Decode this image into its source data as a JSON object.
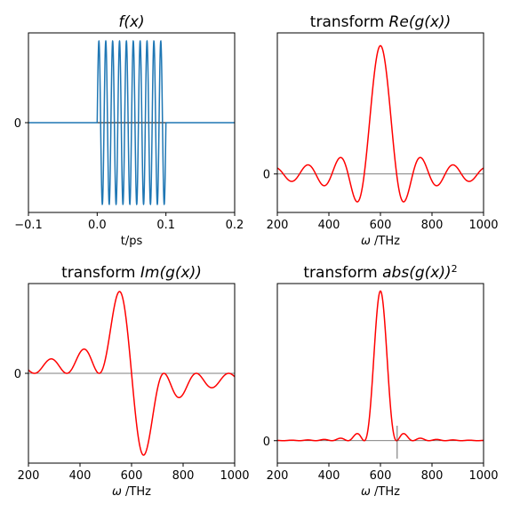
{
  "chart_data": [
    {
      "id": "f",
      "type": "line",
      "title_plain": "",
      "title_math": "f(x)",
      "xlabel_math": "",
      "xlabel_plain": "t/ps",
      "xlim": [
        -0.1,
        0.2
      ],
      "ylim": [
        -1.1,
        1.1
      ],
      "xticks": [
        -0.1,
        0.0,
        0.1,
        0.2
      ],
      "xtick_labels": [
        "−0.1",
        "0.0",
        "0.1",
        "0.2"
      ],
      "yticks": [
        0
      ],
      "ytick_labels": [
        "0"
      ],
      "series": [
        {
          "color": "#1f77b4",
          "kind": "sine-burst",
          "frequency_per_ps": 100,
          "t_start": 0.0,
          "t_end": 0.1,
          "amplitude": 1.0
        }
      ],
      "zero_line": true
    },
    {
      "id": "re",
      "type": "line",
      "title_plain": "transform ",
      "title_math": "Re(g(x))",
      "xlabel_math": "ω",
      "xlabel_plain": " /THz",
      "xlim": [
        200,
        1000
      ],
      "ylim": [
        -0.3,
        1.1
      ],
      "xticks": [
        200,
        400,
        600,
        800,
        1000
      ],
      "xtick_labels": [
        "200",
        "400",
        "600",
        "800",
        "1000"
      ],
      "yticks": [
        0
      ],
      "ytick_labels": [
        "0"
      ],
      "series": [
        {
          "color": "#ff0000",
          "kind": "re",
          "center_THz": 600,
          "halfwidth_THz": 62.8,
          "amplitude": 1.0
        }
      ],
      "zero_line": true
    },
    {
      "id": "im",
      "type": "line",
      "title_plain": "transform ",
      "title_math": "Im(g(x))",
      "xlabel_math": "ω",
      "xlabel_plain": " /THz",
      "xlim": [
        200,
        1000
      ],
      "ylim": [
        -0.9,
        0.9
      ],
      "xticks": [
        200,
        400,
        600,
        800,
        1000
      ],
      "xtick_labels": [
        "200",
        "400",
        "600",
        "800",
        "1000"
      ],
      "yticks": [
        0
      ],
      "ytick_labels": [
        "0"
      ],
      "series": [
        {
          "color": "#ff0000",
          "kind": "im",
          "center_THz": 600,
          "halfwidth_THz": 62.8,
          "amplitude": 0.82
        }
      ],
      "zero_line": true
    },
    {
      "id": "abs",
      "type": "line",
      "title_plain": "transform ",
      "title_math": "abs(g(x))",
      "title_sup": "2",
      "xlabel_math": "ω",
      "xlabel_plain": " /THz",
      "xlim": [
        200,
        1000
      ],
      "ylim": [
        -0.15,
        1.05
      ],
      "xticks": [
        200,
        400,
        600,
        800,
        1000
      ],
      "xtick_labels": [
        "200",
        "400",
        "600",
        "800",
        "1000"
      ],
      "yticks": [
        0
      ],
      "ytick_labels": [
        "0"
      ],
      "series": [
        {
          "color": "#ff0000",
          "kind": "abs2",
          "center_THz": 600,
          "halfwidth_THz": 62.8,
          "amplitude": 1.0
        }
      ],
      "marker_line_x_THz": 665,
      "zero_line": true
    }
  ]
}
